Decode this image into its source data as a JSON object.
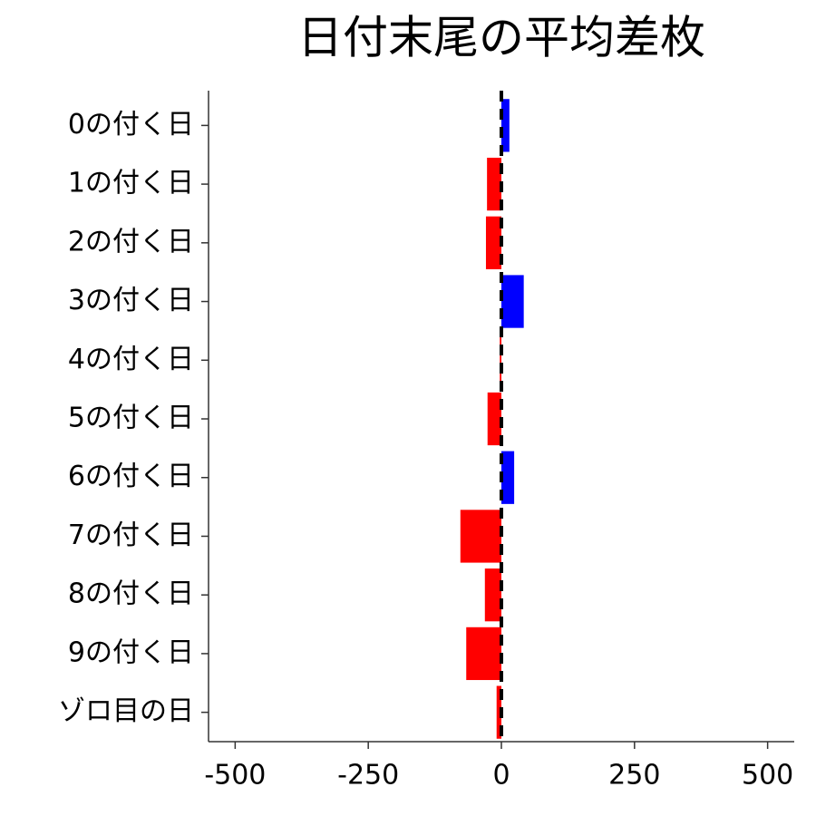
{
  "chart_data": {
    "type": "bar",
    "orientation": "horizontal",
    "title": "日付末尾の平均差枚",
    "categories": [
      "0の付く日",
      "1の付く日",
      "2の付く日",
      "3の付く日",
      "4の付く日",
      "5の付く日",
      "6の付く日",
      "7の付く日",
      "8の付く日",
      "9の付く日",
      "ゾロ目の日"
    ],
    "values": [
      15,
      -27,
      -29,
      42,
      -3,
      -26,
      24,
      -77,
      -31,
      -66,
      -9
    ],
    "colors": [
      "#0000ff",
      "#ff0000",
      "#ff0000",
      "#0000ff",
      "#ff0000",
      "#ff0000",
      "#0000ff",
      "#ff0000",
      "#ff0000",
      "#ff0000",
      "#ff0000"
    ],
    "xlim": [
      -550,
      550
    ],
    "xticks": [
      -500,
      -250,
      0,
      250,
      500
    ],
    "reference_line": 0,
    "grid": false
  }
}
